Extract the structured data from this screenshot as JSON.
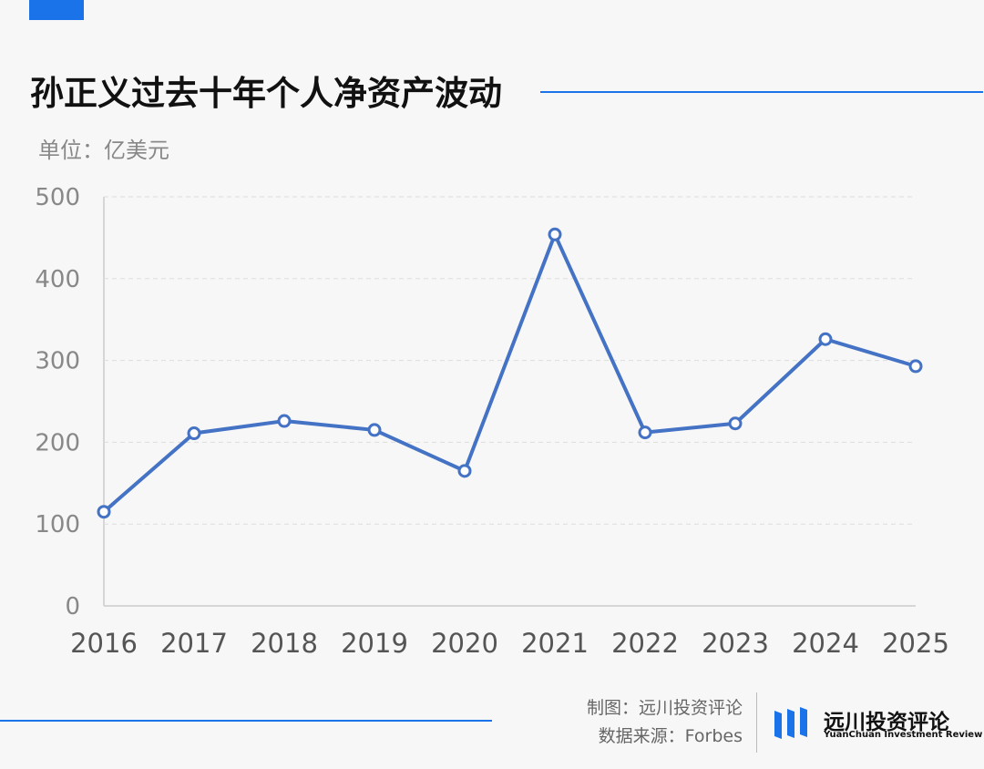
{
  "header": {
    "title": "孙正义过去十年个人净资产波动",
    "unit": "单位：亿美元"
  },
  "footer": {
    "credit": "制图：远川投资评论",
    "source": "数据来源：Forbes",
    "logo_name": "远川投资评论",
    "logo_sub": "YuanChuan Investment Review"
  },
  "colors": {
    "accent": "#1a73e8",
    "line": "#4472c4",
    "text_dark": "#111111",
    "text_muted": "#888888"
  },
  "chart_data": {
    "type": "line",
    "categories": [
      "2016",
      "2017",
      "2018",
      "2019",
      "2020",
      "2021",
      "2022",
      "2023",
      "2024",
      "2025"
    ],
    "series": [
      {
        "values": [
          115,
          211,
          226,
          215,
          165,
          454,
          212,
          223,
          326,
          293
        ]
      }
    ],
    "yticks": [
      0,
      100,
      200,
      300,
      400,
      500
    ],
    "ylim": [
      0,
      500
    ],
    "grid": true,
    "legend": "none"
  }
}
